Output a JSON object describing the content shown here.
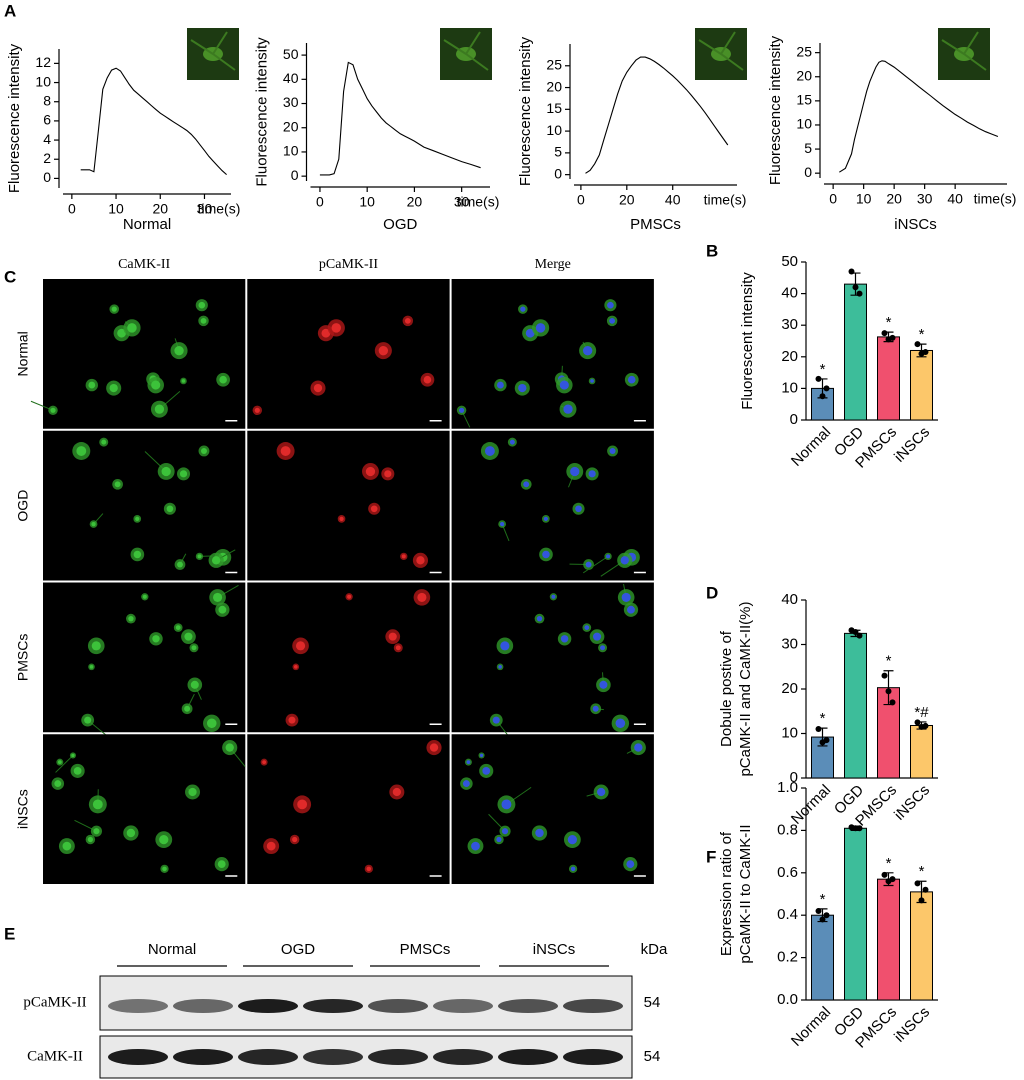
{
  "panel_labels": [
    "A",
    "B",
    "C",
    "D",
    "E",
    "F"
  ],
  "chart_data": [
    {
      "type": "line",
      "title": "Normal",
      "x_label": "time(s)",
      "y_label": "Fluorescence intensity",
      "color": "#000000",
      "x": [
        2,
        4,
        5,
        6,
        7,
        8,
        9,
        10,
        11,
        12,
        13,
        14,
        15,
        16,
        17,
        18,
        19,
        20,
        21,
        22,
        23,
        24,
        25,
        26,
        27,
        28,
        29,
        30,
        31,
        32,
        33,
        34,
        35
      ],
      "values": [
        0.9,
        0.9,
        0.7,
        5,
        9.3,
        10.5,
        11.3,
        11.5,
        11.2,
        10.5,
        9.8,
        9.2,
        8.8,
        8.4,
        8,
        7.6,
        7.2,
        6.8,
        6.5,
        6.2,
        5.9,
        5.6,
        5.3,
        5,
        4.6,
        4.1,
        3.5,
        2.9,
        2.3,
        1.8,
        1.3,
        0.8,
        0.4
      ],
      "xlim": [
        -2,
        36
      ],
      "xticks": [
        0,
        10,
        20,
        30
      ],
      "ylim": [
        -1,
        13.5
      ],
      "yticks": [
        0,
        2,
        4,
        6,
        8,
        10,
        12
      ]
    },
    {
      "type": "line",
      "title": "OGD",
      "x_label": "time(s)",
      "y_label": "Fluorescence intensity",
      "color": "#000000",
      "x": [
        0,
        2,
        3,
        4,
        5,
        6,
        7,
        8,
        9,
        10,
        11,
        12,
        13,
        14,
        15,
        16,
        17,
        18,
        19,
        20,
        22,
        24,
        26,
        28,
        30,
        32,
        34
      ],
      "values": [
        0.5,
        0.5,
        1,
        7,
        35,
        47,
        46,
        40,
        36,
        32,
        29,
        26.5,
        24,
        22,
        20.5,
        19,
        17.5,
        16.5,
        15.5,
        14.5,
        12,
        10.5,
        9,
        7.5,
        6,
        4.8,
        3.5
      ],
      "xlim": [
        -2,
        36
      ],
      "xticks": [
        0,
        10,
        20,
        30
      ],
      "ylim": [
        -2,
        55
      ],
      "yticks": [
        0,
        10,
        20,
        30,
        40,
        50
      ]
    },
    {
      "type": "line",
      "title": "PMSCs",
      "x_label": "time(s)",
      "y_label": "Fluorescence intensity",
      "color": "#000000",
      "x": [
        2,
        4,
        6,
        8,
        10,
        12,
        14,
        16,
        18,
        20,
        22,
        24,
        26,
        28,
        30,
        32,
        34,
        36,
        38,
        40,
        42,
        44,
        46,
        48,
        50,
        52,
        54,
        56,
        58,
        60,
        62,
        64
      ],
      "values": [
        0.3,
        1,
        2.5,
        4.5,
        8,
        11.5,
        15,
        18.5,
        21.5,
        23.5,
        25,
        26.3,
        27,
        27,
        26.6,
        26,
        25.3,
        24.5,
        23.6,
        22.7,
        21.7,
        20.6,
        19.5,
        18.3,
        17,
        15.7,
        14.3,
        12.8,
        11.3,
        9.8,
        8.3,
        6.8
      ],
      "xlim": [
        -3,
        68
      ],
      "xticks": [
        0,
        20,
        40
      ],
      "ylim": [
        -1,
        30
      ],
      "yticks": [
        0,
        5,
        10,
        15,
        20,
        25
      ]
    },
    {
      "type": "line",
      "title": "iNSCs",
      "x_label": "time(s)",
      "y_label": "Fluorescence intensity",
      "color": "#000000",
      "x": [
        2,
        4,
        6,
        7,
        8,
        9,
        10,
        11,
        12,
        13,
        14,
        15,
        16,
        17,
        18,
        20,
        22,
        24,
        26,
        28,
        30,
        32,
        34,
        36,
        38,
        40,
        42,
        44,
        46,
        48,
        50,
        52,
        54
      ],
      "values": [
        0.2,
        1,
        4,
        7,
        9.5,
        12,
        14.5,
        17,
        19,
        20.5,
        22,
        23,
        23.3,
        23.2,
        22.8,
        22,
        21,
        20,
        19,
        18,
        17,
        16,
        15,
        14,
        13.1,
        12.2,
        11.4,
        10.6,
        9.9,
        9.2,
        8.6,
        8.1,
        7.6
      ],
      "xlim": [
        -3,
        57
      ],
      "xticks": [
        0,
        10,
        20,
        30,
        40
      ],
      "ylim": [
        -1,
        27
      ],
      "yticks": [
        0,
        5,
        10,
        15,
        20,
        25
      ]
    },
    {
      "type": "bar",
      "y_label": [
        "Fluorescent  intensity"
      ],
      "categories": [
        "Normal",
        "OGD",
        "PMSCs",
        "iNSCs"
      ],
      "colors": [
        "#5b8db8",
        "#3dbd9a",
        "#f0506e",
        "#fcc76a"
      ],
      "values": [
        10,
        43,
        26.3,
        22
      ],
      "errors": [
        3,
        3.5,
        1.5,
        2
      ],
      "points": [
        [
          13,
          7.5,
          10
        ],
        [
          47,
          42,
          40
        ],
        [
          27.5,
          25.5,
          26
        ],
        [
          24,
          21,
          21.5
        ]
      ],
      "annotations": [
        "*",
        null,
        "*",
        "*"
      ],
      "ylim": [
        0,
        50
      ],
      "yticks": [
        0,
        10,
        20,
        30,
        40,
        50
      ]
    },
    {
      "type": "bar",
      "y_label": [
        "Dobule postive of",
        "pCaMK-II and CaMK-II(%)"
      ],
      "categories": [
        "Normal",
        "OGD",
        "PMSCs",
        "iNSCs"
      ],
      "colors": [
        "#5b8db8",
        "#3dbd9a",
        "#f0506e",
        "#fcc76a"
      ],
      "values": [
        9.2,
        32.5,
        20.3,
        11.8
      ],
      "errors": [
        2,
        0.7,
        3.8,
        0.8
      ],
      "points": [
        [
          11,
          8,
          8.5
        ],
        [
          33.2,
          32.8,
          32
        ],
        [
          23,
          19.5,
          17
        ],
        [
          12.5,
          11.5,
          11.7
        ]
      ],
      "annotations": [
        "*",
        null,
        "*",
        "*#"
      ],
      "ylim": [
        0,
        40
      ],
      "yticks": [
        0,
        10,
        20,
        30,
        40
      ]
    },
    {
      "type": "bar",
      "y_label": [
        "Expression ratio of",
        "pCaMK-II to CaMK-II"
      ],
      "categories": [
        "Normal",
        "OGD",
        "PMSCs",
        "iNSCs"
      ],
      "colors": [
        "#5b8db8",
        "#3dbd9a",
        "#f0506e",
        "#fcc76a"
      ],
      "values": [
        0.4,
        0.81,
        0.57,
        0.51
      ],
      "errors": [
        0.03,
        0.01,
        0.03,
        0.05
      ],
      "points": [
        [
          0.42,
          0.38,
          0.4
        ],
        [
          0.815,
          0.81,
          0.81
        ],
        [
          0.59,
          0.56,
          0.57
        ],
        [
          0.55,
          0.47,
          0.52
        ]
      ],
      "annotations": [
        "*",
        null,
        "*",
        "*"
      ],
      "ylim": [
        0,
        1
      ],
      "yticks": [
        {
          "value": 0,
          "label": "0.0"
        },
        0.2,
        0.4,
        0.6,
        0.8,
        {
          "value": 1,
          "label": "1.0"
        }
      ]
    }
  ],
  "micrographs": {
    "columns": [
      "CaMK-II",
      "pCaMK-II",
      "Merge"
    ],
    "rows": [
      "Normal",
      "OGD",
      "PMSCs",
      "iNSCs"
    ]
  },
  "western_blot": {
    "groups": [
      "Normal",
      "OGD",
      "PMSCs",
      "iNSCs"
    ],
    "unit": "kDa",
    "rows": [
      {
        "name": "pCaMK-II",
        "size": "54"
      },
      {
        "name": "CaMK-II",
        "size": "54"
      }
    ]
  }
}
